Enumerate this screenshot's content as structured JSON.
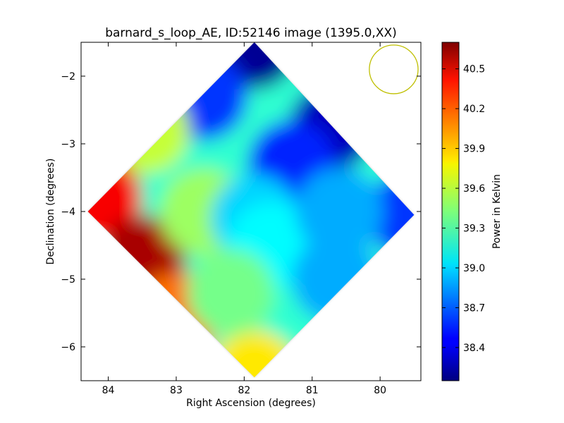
{
  "chart_data": {
    "type": "heatmap",
    "title": "barnard_s_loop_AE, ID:52146 image (1395.0,XX)",
    "xlabel": "Right Ascension (degrees)",
    "ylabel": "Declination (degrees)",
    "xlim": [
      84.4,
      79.4
    ],
    "ylim": [
      -6.5,
      -1.5
    ],
    "x_ticks": [
      {
        "value": 84,
        "label": "84"
      },
      {
        "value": 83,
        "label": "83"
      },
      {
        "value": 82,
        "label": "82"
      },
      {
        "value": 81,
        "label": "81"
      },
      {
        "value": 80,
        "label": "80"
      }
    ],
    "y_ticks": [
      {
        "value": -2,
        "label": "−2"
      },
      {
        "value": -3,
        "label": "−3"
      },
      {
        "value": -4,
        "label": "−4"
      },
      {
        "value": -5,
        "label": "−5"
      },
      {
        "value": -6,
        "label": "−6"
      }
    ],
    "grid": false,
    "colormap": "jet",
    "colorbar": {
      "label": "Power in Kelvin",
      "range": [
        38.15,
        40.7
      ],
      "ticks": [
        {
          "value": 38.4,
          "label": "38.4"
        },
        {
          "value": 38.7,
          "label": "38.7"
        },
        {
          "value": 39.0,
          "label": "39.0"
        },
        {
          "value": 39.3,
          "label": "39.3"
        },
        {
          "value": 39.6,
          "label": "39.6"
        },
        {
          "value": 39.9,
          "label": "39.9"
        },
        {
          "value": 40.2,
          "label": "40.2"
        },
        {
          "value": 40.5,
          "label": "40.5"
        }
      ]
    },
    "footprint": {
      "shape": "rotated-square",
      "corners": [
        {
          "ra": 81.85,
          "dec": -1.5
        },
        {
          "ra": 79.5,
          "dec": -4.05
        },
        {
          "ra": 81.85,
          "dec": -6.45
        },
        {
          "ra": 84.3,
          "dec": -4.0
        }
      ]
    },
    "value_samples": [
      {
        "ra": 81.85,
        "dec": -1.55,
        "value": 38.2
      },
      {
        "ra": 80.7,
        "dec": -2.75,
        "value": 38.3
      },
      {
        "ra": 79.55,
        "dec": -4.05,
        "value": 38.6
      },
      {
        "ra": 82.6,
        "dec": -2.3,
        "value": 38.6
      },
      {
        "ra": 81.3,
        "dec": -3.3,
        "value": 38.55
      },
      {
        "ra": 83.45,
        "dec": -2.8,
        "value": 39.6
      },
      {
        "ra": 84.15,
        "dec": -3.8,
        "value": 40.4
      },
      {
        "ra": 83.5,
        "dec": -4.7,
        "value": 40.6
      },
      {
        "ra": 83.0,
        "dec": -5.55,
        "value": 40.1
      },
      {
        "ra": 81.85,
        "dec": -6.4,
        "value": 39.8
      },
      {
        "ra": 82.6,
        "dec": -4.0,
        "value": 39.5
      },
      {
        "ra": 81.85,
        "dec": -4.1,
        "value": 39.0
      },
      {
        "ra": 81.6,
        "dec": -4.5,
        "value": 39.1
      },
      {
        "ra": 80.65,
        "dec": -5.0,
        "value": 38.9
      },
      {
        "ra": 82.2,
        "dec": -5.2,
        "value": 39.4
      },
      {
        "ra": 80.6,
        "dec": -4.0,
        "value": 38.9
      }
    ],
    "beam": {
      "shape": "circle",
      "ra": 79.8,
      "dec": -1.9,
      "radius_deg": 0.36,
      "color": "#bfbf00"
    }
  }
}
